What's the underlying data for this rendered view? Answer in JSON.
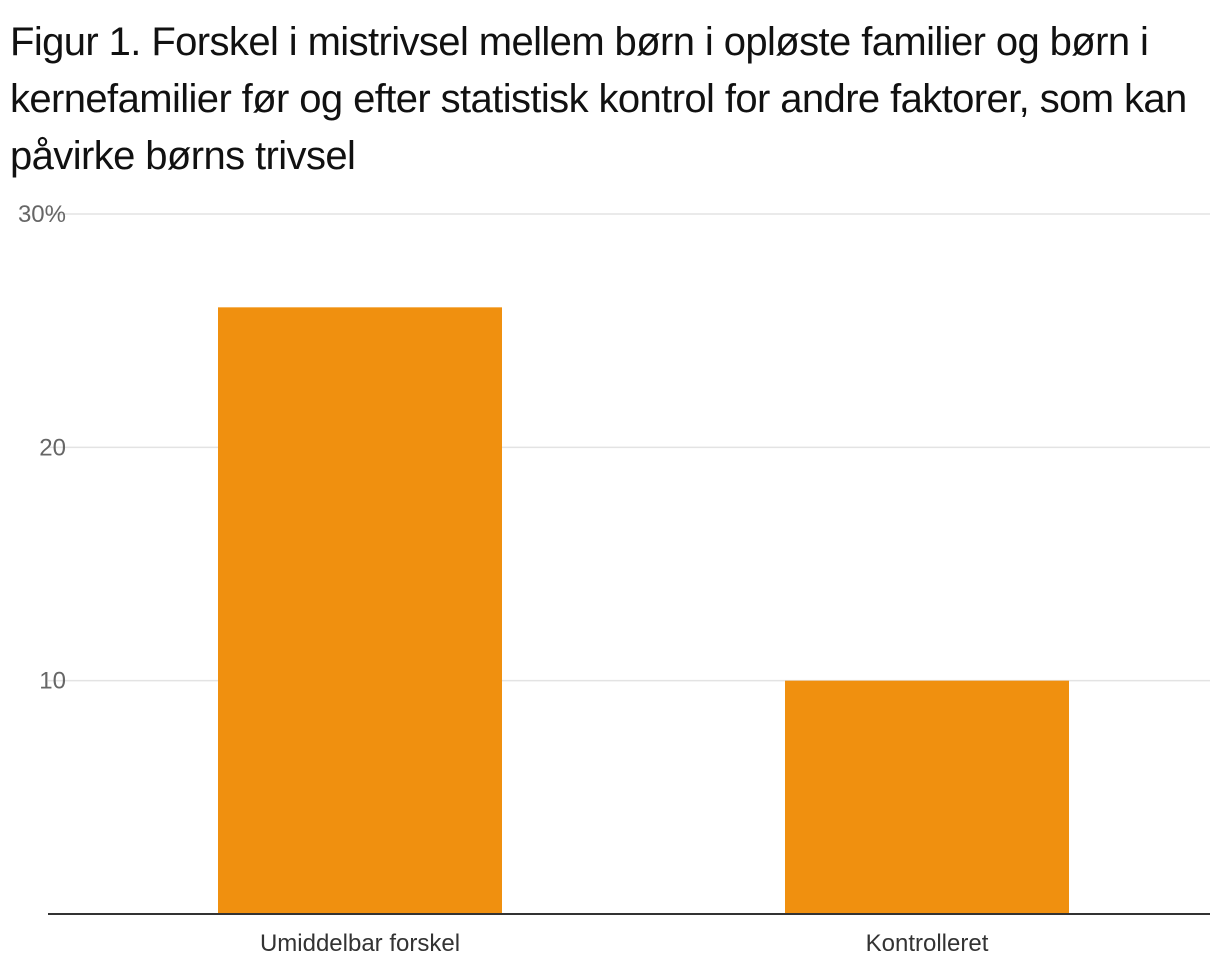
{
  "chart_data": {
    "type": "bar",
    "title": "Figur 1. Forskel i mistrivsel mellem børn i opløste familier og børn i kernefamilier før og efter statistisk kontrol for andre faktorer, som kan påvirke børns trivsel",
    "categories": [
      "Umiddelbar forskel",
      "Kontrolleret"
    ],
    "values": [
      26,
      10
    ],
    "ylim": [
      0,
      30
    ],
    "yticks": [
      10,
      20,
      30
    ],
    "ytick_labels": [
      "10",
      "20",
      "30%"
    ],
    "xlabel": "",
    "ylabel": "",
    "grid": true,
    "legend": "none",
    "bar_color": "#F0900F",
    "gridline_color": "#e3e3e3",
    "axis_color": "#333333"
  }
}
